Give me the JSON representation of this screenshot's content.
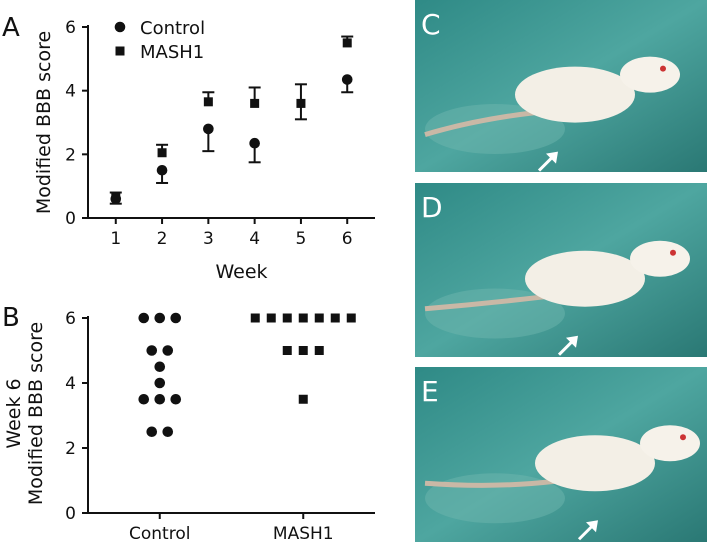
{
  "chart_data": [
    {
      "type": "scatter",
      "panel_label": "A",
      "y_label": "Modified BBB score",
      "x_label": "Week",
      "x": [
        1,
        2,
        3,
        4,
        5,
        6
      ],
      "xlim": [
        0.4,
        6.6
      ],
      "xticks": [
        1,
        2,
        3,
        4,
        5,
        6
      ],
      "ylim": [
        0,
        6
      ],
      "yticks": [
        0,
        2,
        4,
        6
      ],
      "series": [
        {
          "name": "Control",
          "marker": "circle",
          "color": "#111111",
          "values": [
            0.6,
            1.5,
            2.8,
            2.35,
            null,
            4.35
          ],
          "errors_low": [
            0.15,
            0.4,
            0.7,
            0.6,
            null,
            0.4
          ]
        },
        {
          "name": "MASH1",
          "marker": "square",
          "color": "#111111",
          "values": [
            0.65,
            2.05,
            3.65,
            3.6,
            3.6,
            5.5
          ],
          "errors_high": [
            0.15,
            0.25,
            0.3,
            0.5,
            0.6,
            0.2
          ],
          "errors_low": [
            null,
            null,
            null,
            null,
            0.5,
            null
          ]
        }
      ]
    },
    {
      "type": "strip",
      "panel_label": "B",
      "y_label": [
        "Week 6",
        "Modified BBB score"
      ],
      "categories": [
        "Control",
        "MASH1"
      ],
      "ylim": [
        0,
        6
      ],
      "yticks": [
        0,
        2,
        4,
        6
      ],
      "series": [
        {
          "name": "Control",
          "marker": "circle",
          "color": "#111111",
          "values": [
            6,
            6,
            6,
            5,
            5,
            4.5,
            4,
            3.5,
            3.5,
            3.5,
            2.5,
            2.5
          ]
        },
        {
          "name": "MASH1",
          "marker": "square",
          "color": "#111111",
          "values": [
            6,
            6,
            6,
            6,
            6,
            6,
            6,
            5,
            5,
            5,
            3.5
          ]
        }
      ]
    }
  ],
  "photos": [
    {
      "label": "C"
    },
    {
      "label": "D"
    },
    {
      "label": "E"
    }
  ]
}
